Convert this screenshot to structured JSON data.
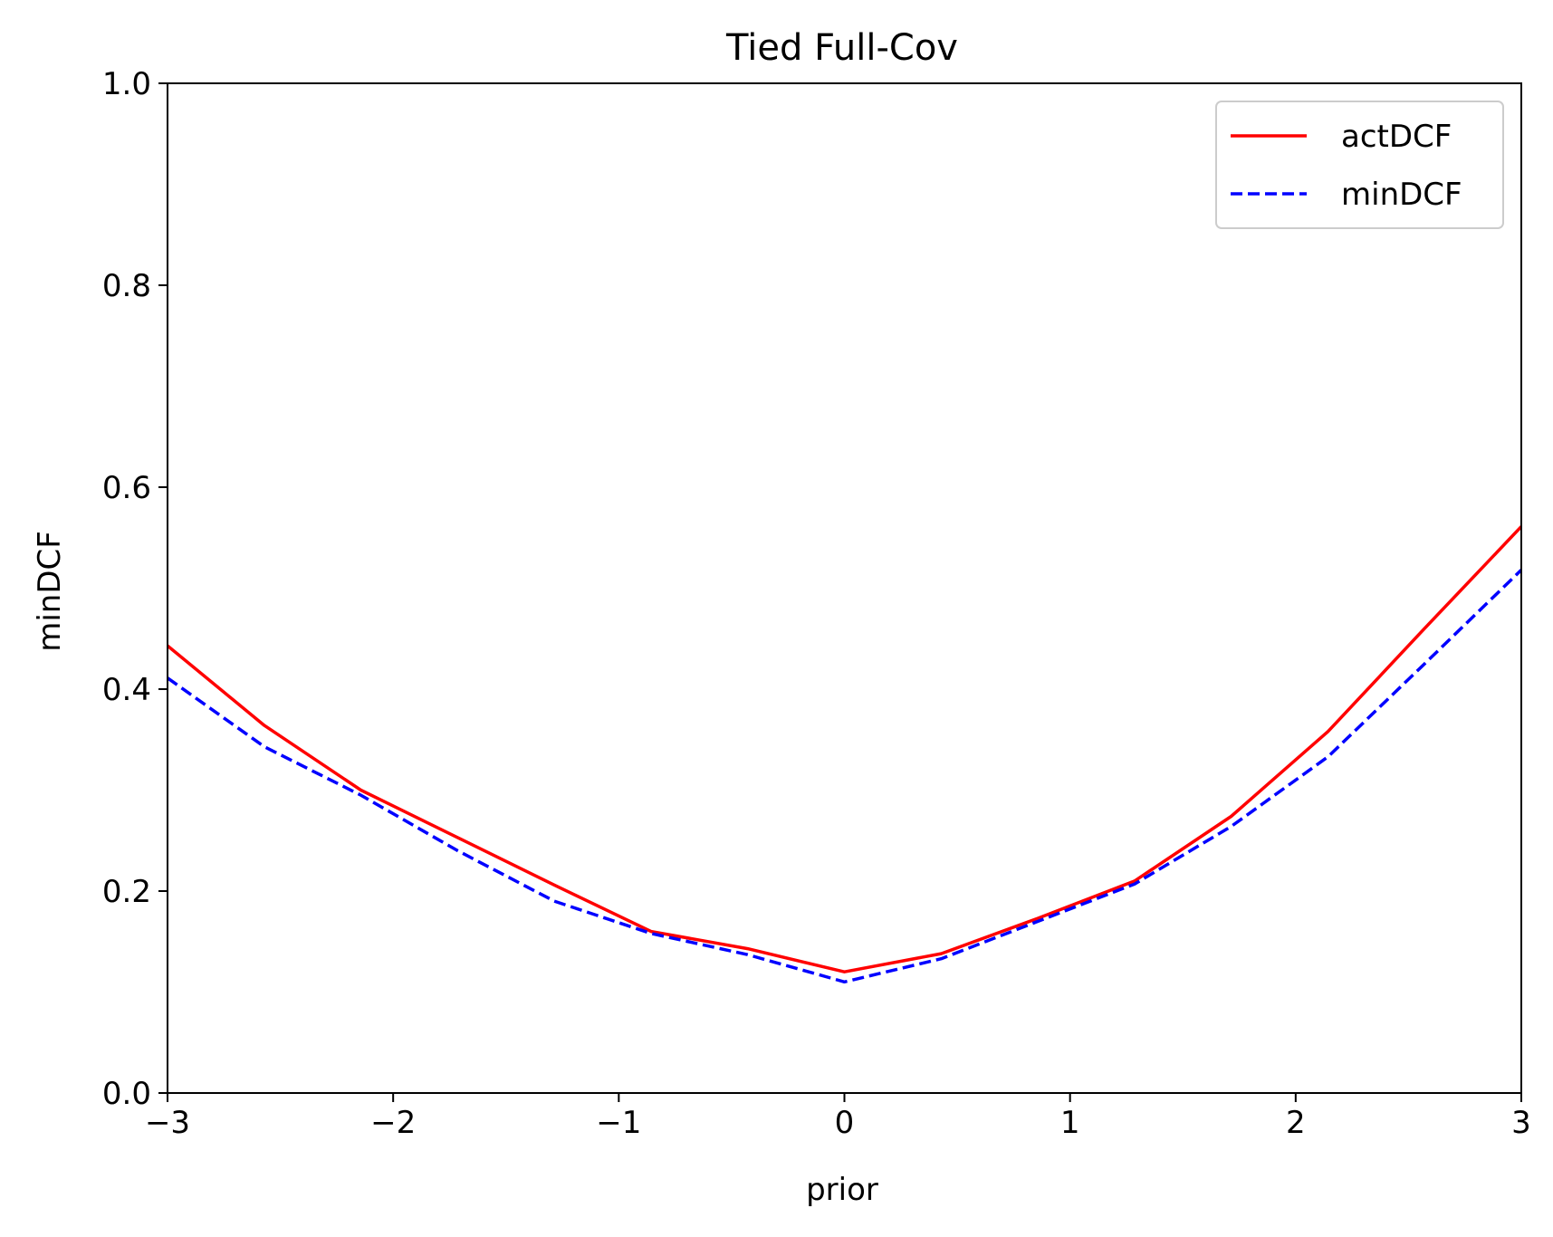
{
  "chart_data": {
    "type": "line",
    "title": "Tied Full-Cov",
    "xlabel": "prior",
    "ylabel": "minDCF",
    "xlim": [
      -3,
      3
    ],
    "ylim": [
      0,
      1
    ],
    "x_ticks": [
      -3,
      -2,
      -1,
      0,
      1,
      2,
      3
    ],
    "x_tick_labels": [
      "−3",
      "−2",
      "−1",
      "0",
      "1",
      "2",
      "3"
    ],
    "y_ticks": [
      0.0,
      0.2,
      0.4,
      0.6,
      0.8,
      1.0
    ],
    "y_tick_labels": [
      "0.0",
      "0.2",
      "0.4",
      "0.6",
      "0.8",
      "1.0"
    ],
    "grid": false,
    "legend_position": "top-right",
    "x": [
      -3.0,
      -2.571,
      -2.143,
      -1.714,
      -1.286,
      -0.857,
      -0.429,
      0.0,
      0.429,
      0.857,
      1.286,
      1.714,
      2.143,
      2.571,
      3.0
    ],
    "series": [
      {
        "name": "actDCF",
        "color": "#ff0000",
        "style": "solid",
        "values": [
          0.443,
          0.364,
          0.3,
          0.253,
          0.206,
          0.16,
          0.143,
          0.12,
          0.138,
          0.173,
          0.21,
          0.274,
          0.358,
          0.46,
          0.561
        ]
      },
      {
        "name": "minDCF",
        "color": "#0000ff",
        "style": "dashed",
        "values": [
          0.411,
          0.343,
          0.295,
          0.24,
          0.19,
          0.158,
          0.137,
          0.11,
          0.133,
          0.17,
          0.207,
          0.264,
          0.333,
          0.425,
          0.518
        ]
      }
    ]
  }
}
